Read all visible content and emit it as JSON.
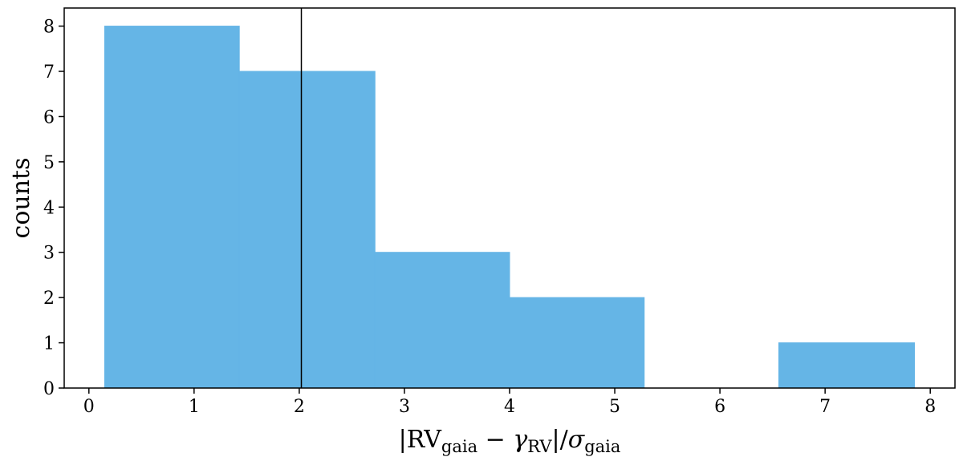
{
  "chart_data": {
    "type": "histogram",
    "bins": [
      0.15,
      1.43,
      2.72,
      4.0,
      5.28,
      6.56,
      7.85
    ],
    "counts": [
      8,
      7,
      3,
      2,
      0,
      1
    ],
    "color": "#65b5e6",
    "vline": 2.02,
    "xlim": [
      -0.235,
      8.235
    ],
    "ylim": [
      0,
      8.4
    ],
    "xticks": [
      0,
      1,
      2,
      3,
      4,
      5,
      6,
      7,
      8
    ],
    "yticks": [
      0,
      1,
      2,
      3,
      4,
      5,
      6,
      7,
      8
    ],
    "ylabel": "counts",
    "xlabel": [
      {
        "text": "|RV"
      },
      {
        "text": "gaia",
        "sub": true
      },
      {
        "text": " − "
      },
      {
        "text": "γ",
        "italic": true
      },
      {
        "text": "RV",
        "sub": true
      },
      {
        "text": "|/"
      },
      {
        "text": "σ",
        "italic": true
      },
      {
        "text": "gaia",
        "sub": true
      }
    ]
  }
}
